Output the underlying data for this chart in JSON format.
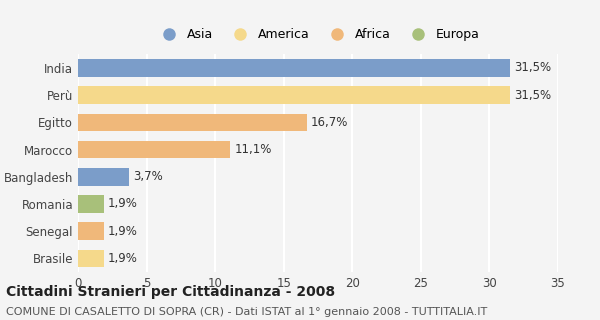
{
  "countries": [
    "India",
    "Perù",
    "Egitto",
    "Marocco",
    "Bangladesh",
    "Romania",
    "Senegal",
    "Brasile"
  ],
  "values": [
    31.5,
    31.5,
    16.7,
    11.1,
    3.7,
    1.9,
    1.9,
    1.9
  ],
  "labels": [
    "31,5%",
    "31,5%",
    "16,7%",
    "11,1%",
    "3,7%",
    "1,9%",
    "1,9%",
    "1,9%"
  ],
  "colors": [
    "#7b9dc9",
    "#f5d98b",
    "#f0b87a",
    "#f0b87a",
    "#7b9dc9",
    "#a8c07a",
    "#f0b87a",
    "#f5d98b"
  ],
  "legend_labels": [
    "Asia",
    "America",
    "Africa",
    "Europa"
  ],
  "legend_colors": [
    "#7b9dc9",
    "#f5d98b",
    "#f0b87a",
    "#a8c07a"
  ],
  "title": "Cittadini Stranieri per Cittadinanza - 2008",
  "subtitle": "COMUNE DI CASALETTO DI SOPRA (CR) - Dati ISTAT al 1° gennaio 2008 - TUTTITALIA.IT",
  "xlim": [
    0,
    35
  ],
  "xticks": [
    0,
    5,
    10,
    15,
    20,
    25,
    30,
    35
  ],
  "background_color": "#f4f4f4",
  "grid_color": "#ffffff",
  "bar_height": 0.65,
  "label_fontsize": 8.5,
  "title_fontsize": 10,
  "subtitle_fontsize": 8,
  "tick_fontsize": 8.5
}
